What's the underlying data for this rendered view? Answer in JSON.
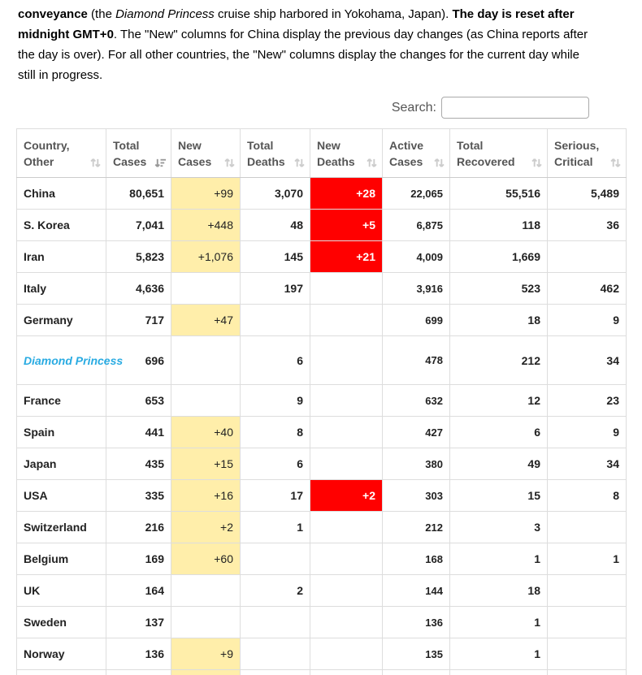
{
  "intro": {
    "segments": [
      {
        "text": "conveyance",
        "bold": true
      },
      {
        "text": " (the "
      },
      {
        "text": "Diamond Princess",
        "italic": true
      },
      {
        "text": " cruise ship harbored in Yokohama, Japan). "
      },
      {
        "text": "The day is reset after midnight GMT+0",
        "bold": true
      },
      {
        "text": ". The \"New\" columns for China display the previous day changes (as China reports after the day is over). For all other countries, the \"New\" columns display the changes for the current day while still in progress."
      }
    ]
  },
  "search": {
    "label": "Search:",
    "value": "",
    "placeholder": ""
  },
  "table": {
    "columns": [
      {
        "key": "country",
        "label_line1": "Country,",
        "label_line2": "Other",
        "sort": "both",
        "sort_icon": "sort-both-icon"
      },
      {
        "key": "total_cases",
        "label_line1": "Total",
        "label_line2": "Cases",
        "sort": "desc",
        "sort_icon": "sort-descending-icon"
      },
      {
        "key": "new_cases",
        "label_line1": "New",
        "label_line2": "Cases",
        "sort": "both",
        "sort_icon": "sort-both-icon"
      },
      {
        "key": "total_deaths",
        "label_line1": "Total",
        "label_line2": "Deaths",
        "sort": "both",
        "sort_icon": "sort-both-icon"
      },
      {
        "key": "new_deaths",
        "label_line1": "New",
        "label_line2": "Deaths",
        "sort": "both",
        "sort_icon": "sort-both-icon"
      },
      {
        "key": "active_cases",
        "label_line1": "Active",
        "label_line2": "Cases",
        "sort": "both",
        "sort_icon": "sort-both-icon"
      },
      {
        "key": "total_recovered",
        "label_line1": "Total",
        "label_line2": "Recovered",
        "sort": "both",
        "sort_icon": "sort-both-icon"
      },
      {
        "key": "serious_critical",
        "label_line1": "Serious,",
        "label_line2": "Critical",
        "sort": "both",
        "sort_icon": "sort-both-icon"
      }
    ],
    "rows": [
      {
        "country": "China",
        "link": false,
        "tall": false,
        "total_cases": "80,651",
        "new_cases": "+99",
        "total_deaths": "3,070",
        "new_deaths": "+28",
        "active_cases": "22,065",
        "total_recovered": "55,516",
        "serious_critical": "5,489"
      },
      {
        "country": "S. Korea",
        "link": false,
        "tall": false,
        "total_cases": "7,041",
        "new_cases": "+448",
        "total_deaths": "48",
        "new_deaths": "+5",
        "active_cases": "6,875",
        "total_recovered": "118",
        "serious_critical": "36"
      },
      {
        "country": "Iran",
        "link": false,
        "tall": false,
        "total_cases": "5,823",
        "new_cases": "+1,076",
        "total_deaths": "145",
        "new_deaths": "+21",
        "active_cases": "4,009",
        "total_recovered": "1,669",
        "serious_critical": ""
      },
      {
        "country": "Italy",
        "link": false,
        "tall": false,
        "total_cases": "4,636",
        "new_cases": "",
        "total_deaths": "197",
        "new_deaths": "",
        "active_cases": "3,916",
        "total_recovered": "523",
        "serious_critical": "462"
      },
      {
        "country": "Germany",
        "link": false,
        "tall": false,
        "total_cases": "717",
        "new_cases": "+47",
        "total_deaths": "",
        "new_deaths": "",
        "active_cases": "699",
        "total_recovered": "18",
        "serious_critical": "9"
      },
      {
        "country": "Diamond Princess",
        "link": true,
        "tall": true,
        "total_cases": "696",
        "new_cases": "",
        "total_deaths": "6",
        "new_deaths": "",
        "active_cases": "478",
        "total_recovered": "212",
        "serious_critical": "34"
      },
      {
        "country": "France",
        "link": false,
        "tall": false,
        "total_cases": "653",
        "new_cases": "",
        "total_deaths": "9",
        "new_deaths": "",
        "active_cases": "632",
        "total_recovered": "12",
        "serious_critical": "23"
      },
      {
        "country": "Spain",
        "link": false,
        "tall": false,
        "total_cases": "441",
        "new_cases": "+40",
        "total_deaths": "8",
        "new_deaths": "",
        "active_cases": "427",
        "total_recovered": "6",
        "serious_critical": "9"
      },
      {
        "country": "Japan",
        "link": false,
        "tall": false,
        "total_cases": "435",
        "new_cases": "+15",
        "total_deaths": "6",
        "new_deaths": "",
        "active_cases": "380",
        "total_recovered": "49",
        "serious_critical": "34"
      },
      {
        "country": "USA",
        "link": false,
        "tall": false,
        "total_cases": "335",
        "new_cases": "+16",
        "total_deaths": "17",
        "new_deaths": "+2",
        "active_cases": "303",
        "total_recovered": "15",
        "serious_critical": "8"
      },
      {
        "country": "Switzerland",
        "link": false,
        "tall": false,
        "total_cases": "216",
        "new_cases": "+2",
        "total_deaths": "1",
        "new_deaths": "",
        "active_cases": "212",
        "total_recovered": "3",
        "serious_critical": ""
      },
      {
        "country": "Belgium",
        "link": false,
        "tall": false,
        "total_cases": "169",
        "new_cases": "+60",
        "total_deaths": "",
        "new_deaths": "",
        "active_cases": "168",
        "total_recovered": "1",
        "serious_critical": "1"
      },
      {
        "country": "UK",
        "link": false,
        "tall": false,
        "total_cases": "164",
        "new_cases": "",
        "total_deaths": "2",
        "new_deaths": "",
        "active_cases": "144",
        "total_recovered": "18",
        "serious_critical": ""
      },
      {
        "country": "Sweden",
        "link": false,
        "tall": false,
        "total_cases": "137",
        "new_cases": "",
        "total_deaths": "",
        "new_deaths": "",
        "active_cases": "136",
        "total_recovered": "1",
        "serious_critical": ""
      },
      {
        "country": "Norway",
        "link": false,
        "tall": false,
        "total_cases": "136",
        "new_cases": "+9",
        "total_deaths": "",
        "new_deaths": "",
        "active_cases": "135",
        "total_recovered": "1",
        "serious_critical": ""
      }
    ],
    "partial_next_row": {
      "visible": true,
      "new_cases_highlighted": true
    }
  },
  "colors": {
    "highlight_yellow": "#FFEEAA",
    "highlight_red": "#FF0000",
    "link_blue": "#29ABE2",
    "header_text": "#555555",
    "cell_text": "#222222",
    "border": "#DDDDDD"
  }
}
